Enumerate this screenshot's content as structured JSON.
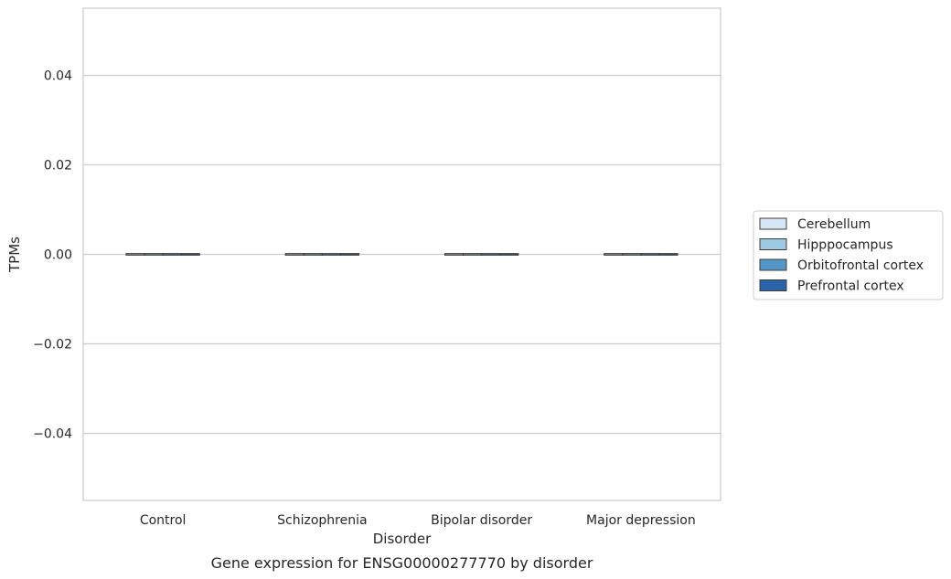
{
  "chart_data": {
    "type": "box",
    "caption": "Gene expression for ENSG00000277770 by disorder",
    "xlabel": "Disorder",
    "ylabel": "TPMs",
    "categories": [
      "Control",
      "Schizophrenia",
      "Bipolar disorder",
      "Major depression"
    ],
    "ylim": [
      -0.055,
      0.055
    ],
    "yticks": [
      -0.04,
      -0.02,
      0.0,
      0.02,
      0.04
    ],
    "ytick_labels": [
      "−0.04",
      "−0.02",
      "0.00",
      "0.02",
      "0.04"
    ],
    "grid": true,
    "legend_position": "center-right, outside plot",
    "series": [
      {
        "name": "Cerebellum",
        "color": "#d6e6f4",
        "values": [
          0,
          0,
          0,
          0
        ]
      },
      {
        "name": "Hipppocampus",
        "color": "#9ecae1",
        "values": [
          0,
          0,
          0,
          0
        ]
      },
      {
        "name": "Orbitofrontal cortex",
        "color": "#5596c9",
        "values": [
          0,
          0,
          0,
          0
        ]
      },
      {
        "name": "Prefrontal cortex",
        "color": "#2a64a8",
        "values": [
          0,
          0,
          0,
          0
        ]
      }
    ]
  }
}
